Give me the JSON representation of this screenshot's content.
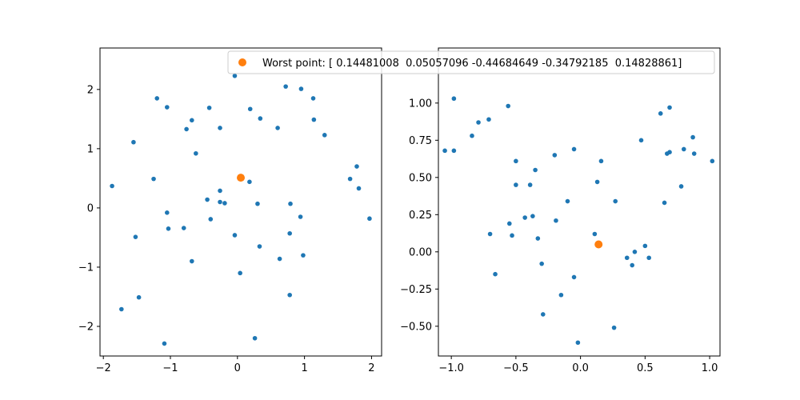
{
  "chart_data": [
    {
      "type": "scatter",
      "title": "",
      "xlabel": "",
      "ylabel": "",
      "xlim": [
        -2.05,
        2.15
      ],
      "ylim": [
        -2.5,
        2.7
      ],
      "xticks": [
        -2,
        -1,
        0,
        1,
        2
      ],
      "yticks": [
        -2,
        -1,
        0,
        1,
        2
      ],
      "grid": false,
      "series": [
        {
          "color": "#1f77b4",
          "marker_size": "small",
          "points": [
            [
              -1.87,
              0.37
            ],
            [
              -1.73,
              -1.71
            ],
            [
              -1.55,
              1.11
            ],
            [
              -1.52,
              -0.49
            ],
            [
              -1.47,
              -1.51
            ],
            [
              -1.25,
              0.49
            ],
            [
              -1.2,
              1.85
            ],
            [
              -1.09,
              -2.29
            ],
            [
              -1.05,
              1.7
            ],
            [
              -1.05,
              -0.08
            ],
            [
              -1.03,
              -0.35
            ],
            [
              -0.8,
              -0.34
            ],
            [
              -0.76,
              1.33
            ],
            [
              -0.68,
              1.48
            ],
            [
              -0.68,
              -0.9
            ],
            [
              -0.62,
              0.92
            ],
            [
              -0.45,
              0.14
            ],
            [
              -0.42,
              1.69
            ],
            [
              -0.4,
              -0.19
            ],
            [
              -0.26,
              0.29
            ],
            [
              -0.26,
              1.35
            ],
            [
              -0.26,
              0.1
            ],
            [
              -0.19,
              0.08
            ],
            [
              -0.04,
              2.23
            ],
            [
              -0.04,
              -0.46
            ],
            [
              0.04,
              -1.1
            ],
            [
              0.18,
              0.44
            ],
            [
              0.19,
              1.67
            ],
            [
              0.26,
              -2.2
            ],
            [
              0.3,
              0.07
            ],
            [
              0.33,
              -0.65
            ],
            [
              0.34,
              1.51
            ],
            [
              0.6,
              1.35
            ],
            [
              0.63,
              -0.86
            ],
            [
              0.72,
              2.05
            ],
            [
              0.78,
              -0.43
            ],
            [
              0.79,
              0.07
            ],
            [
              0.78,
              -1.47
            ],
            [
              0.94,
              -0.15
            ],
            [
              0.95,
              2.01
            ],
            [
              0.98,
              -0.8
            ],
            [
              1.13,
              1.85
            ],
            [
              1.14,
              1.49
            ],
            [
              1.3,
              1.23
            ],
            [
              1.68,
              0.49
            ],
            [
              1.78,
              0.7
            ],
            [
              1.81,
              0.33
            ],
            [
              1.97,
              -0.18
            ]
          ]
        },
        {
          "name": "Worst point: [ 0.14481008  0.05057096 -0.44684649 -0.34792185  0.14828861]",
          "color": "#ff7f0e",
          "marker_size": "large",
          "points": [
            [
              0.05,
              0.51
            ]
          ]
        }
      ],
      "legend": {
        "placement": "top-right",
        "entries": [
          "Worst point: [ 0.14481008  0.05057096 -0.44684649 -0.34792185  0.14828861]"
        ]
      }
    },
    {
      "type": "scatter",
      "title": "",
      "xlabel": "",
      "ylabel": "",
      "xlim": [
        -1.1,
        1.08
      ],
      "ylim": [
        -0.7,
        1.37
      ],
      "xticks": [
        -1.0,
        -0.5,
        0.0,
        0.5,
        1.0
      ],
      "xtick_labels": [
        "−1.0",
        "−0.5",
        "0.0",
        "0.5",
        "1.0"
      ],
      "yticks": [
        -0.5,
        -0.25,
        0.0,
        0.25,
        0.5,
        0.75,
        1.0
      ],
      "ytick_labels": [
        "−0.50",
        "−0.25",
        "0.00",
        "0.25",
        "0.50",
        "0.75",
        "1.00"
      ],
      "grid": false,
      "series": [
        {
          "color": "#1f77b4",
          "marker_size": "small",
          "points": [
            [
              -1.05,
              0.68
            ],
            [
              -0.98,
              1.03
            ],
            [
              -0.98,
              0.68
            ],
            [
              -0.84,
              0.78
            ],
            [
              -0.79,
              0.87
            ],
            [
              -0.71,
              0.89
            ],
            [
              -0.7,
              0.12
            ],
            [
              -0.66,
              -0.15
            ],
            [
              -0.56,
              0.98
            ],
            [
              -0.55,
              0.19
            ],
            [
              -0.53,
              0.11
            ],
            [
              -0.5,
              0.61
            ],
            [
              -0.5,
              0.45
            ],
            [
              -0.43,
              0.23
            ],
            [
              -0.39,
              0.45
            ],
            [
              -0.37,
              0.24
            ],
            [
              -0.35,
              0.55
            ],
            [
              -0.33,
              0.09
            ],
            [
              -0.3,
              -0.08
            ],
            [
              -0.29,
              -0.42
            ],
            [
              -0.2,
              0.65
            ],
            [
              -0.19,
              0.21
            ],
            [
              -0.15,
              -0.29
            ],
            [
              -0.1,
              0.34
            ],
            [
              -0.05,
              0.69
            ],
            [
              -0.05,
              -0.17
            ],
            [
              -0.02,
              -0.61
            ],
            [
              0.11,
              0.12
            ],
            [
              0.13,
              0.47
            ],
            [
              0.16,
              0.61
            ],
            [
              0.26,
              -0.51
            ],
            [
              0.27,
              0.34
            ],
            [
              0.36,
              -0.04
            ],
            [
              0.4,
              -0.09
            ],
            [
              0.42,
              0.0
            ],
            [
              0.47,
              0.75
            ],
            [
              0.5,
              0.04
            ],
            [
              0.53,
              -0.04
            ],
            [
              0.62,
              0.93
            ],
            [
              0.65,
              0.33
            ],
            [
              0.67,
              0.66
            ],
            [
              0.69,
              0.67
            ],
            [
              0.69,
              0.97
            ],
            [
              0.78,
              0.44
            ],
            [
              0.8,
              0.69
            ],
            [
              0.87,
              0.77
            ],
            [
              0.88,
              0.66
            ],
            [
              1.02,
              0.61
            ]
          ]
        },
        {
          "color": "#ff7f0e",
          "marker_size": "large",
          "points": [
            [
              0.14,
              0.05
            ]
          ]
        }
      ]
    }
  ]
}
